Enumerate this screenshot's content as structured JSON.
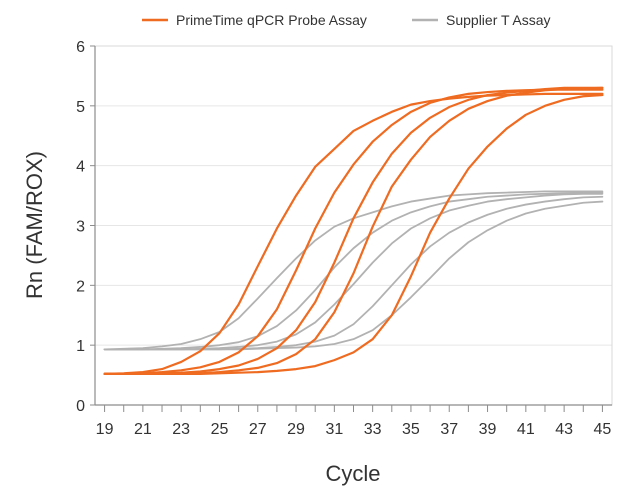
{
  "chart_data": {
    "type": "line",
    "title": "",
    "xlabel": "Cycle",
    "ylabel": "Rn (FAM/ROX)",
    "xlim": [
      18.5,
      45.5
    ],
    "ylim": [
      0,
      6
    ],
    "x_ticks": [
      19,
      20,
      21,
      22,
      23,
      24,
      25,
      26,
      27,
      28,
      29,
      30,
      31,
      32,
      33,
      34,
      35,
      36,
      37,
      38,
      39,
      40,
      41,
      42,
      43,
      44,
      45
    ],
    "x_tick_labels": [
      "19",
      "21",
      "23",
      "25",
      "27",
      "29",
      "31",
      "33",
      "35",
      "37",
      "39",
      "41",
      "43",
      "45"
    ],
    "y_ticks": [
      0,
      1,
      2,
      3,
      4,
      5,
      6
    ],
    "grid": true,
    "legend_position": "top",
    "legend": [
      {
        "label": "PrimeTime qPCR Probe Assay",
        "color": "#ee6b21"
      },
      {
        "label": "Supplier T Assay",
        "color": "#b2b2b2"
      }
    ],
    "x": [
      19,
      20,
      21,
      22,
      23,
      24,
      25,
      26,
      27,
      28,
      29,
      30,
      31,
      32,
      33,
      34,
      35,
      36,
      37,
      38,
      39,
      40,
      41,
      42,
      43,
      44,
      45
    ],
    "series": [
      {
        "group": "PrimeTime qPCR Probe Assay",
        "color": "#ee6b21",
        "values": [
          0.52,
          0.53,
          0.55,
          0.6,
          0.72,
          0.9,
          1.2,
          1.68,
          2.32,
          2.95,
          3.5,
          3.98,
          4.28,
          4.58,
          4.75,
          4.9,
          5.02,
          5.08,
          5.12,
          5.15,
          5.17,
          5.18,
          5.19,
          5.2,
          5.2,
          5.2,
          5.2
        ]
      },
      {
        "group": "PrimeTime qPCR Probe Assay",
        "color": "#ee6b21",
        "values": [
          0.52,
          0.52,
          0.53,
          0.55,
          0.58,
          0.63,
          0.72,
          0.88,
          1.15,
          1.6,
          2.25,
          2.95,
          3.55,
          4.02,
          4.4,
          4.68,
          4.9,
          5.05,
          5.14,
          5.2,
          5.23,
          5.25,
          5.26,
          5.27,
          5.27,
          5.27,
          5.27
        ]
      },
      {
        "group": "PrimeTime qPCR Probe Assay",
        "color": "#ee6b21",
        "values": [
          0.52,
          0.52,
          0.52,
          0.53,
          0.54,
          0.56,
          0.6,
          0.66,
          0.77,
          0.95,
          1.25,
          1.72,
          2.38,
          3.12,
          3.72,
          4.2,
          4.55,
          4.8,
          4.98,
          5.1,
          5.18,
          5.22,
          5.25,
          5.28,
          5.3,
          5.3,
          5.3
        ]
      },
      {
        "group": "PrimeTime qPCR Probe Assay",
        "color": "#ee6b21",
        "values": [
          0.52,
          0.52,
          0.52,
          0.52,
          0.53,
          0.53,
          0.55,
          0.58,
          0.62,
          0.7,
          0.85,
          1.1,
          1.55,
          2.2,
          2.98,
          3.65,
          4.1,
          4.48,
          4.75,
          4.95,
          5.08,
          5.17,
          5.22,
          5.26,
          5.28,
          5.29,
          5.3
        ]
      },
      {
        "group": "PrimeTime qPCR Probe Assay",
        "color": "#ee6b21",
        "values": [
          0.52,
          0.52,
          0.52,
          0.52,
          0.52,
          0.52,
          0.53,
          0.54,
          0.55,
          0.57,
          0.6,
          0.65,
          0.75,
          0.88,
          1.1,
          1.5,
          2.15,
          2.88,
          3.45,
          3.95,
          4.32,
          4.62,
          4.85,
          5.0,
          5.1,
          5.16,
          5.18
        ]
      },
      {
        "group": "Supplier T Assay",
        "color": "#b2b2b2",
        "values": [
          0.93,
          0.94,
          0.95,
          0.98,
          1.02,
          1.1,
          1.22,
          1.45,
          1.78,
          2.12,
          2.45,
          2.75,
          2.98,
          3.12,
          3.22,
          3.32,
          3.4,
          3.45,
          3.5,
          3.52,
          3.54,
          3.55,
          3.56,
          3.57,
          3.57,
          3.57,
          3.57
        ]
      },
      {
        "group": "Supplier T Assay",
        "color": "#b2b2b2",
        "values": [
          0.93,
          0.93,
          0.93,
          0.94,
          0.95,
          0.97,
          1.0,
          1.05,
          1.15,
          1.32,
          1.58,
          1.92,
          2.3,
          2.62,
          2.88,
          3.08,
          3.22,
          3.32,
          3.4,
          3.44,
          3.48,
          3.5,
          3.52,
          3.53,
          3.54,
          3.55,
          3.55
        ]
      },
      {
        "group": "Supplier T Assay",
        "color": "#b2b2b2",
        "values": [
          0.93,
          0.93,
          0.93,
          0.93,
          0.93,
          0.94,
          0.95,
          0.97,
          1.0,
          1.06,
          1.18,
          1.38,
          1.68,
          2.02,
          2.38,
          2.7,
          2.95,
          3.12,
          3.25,
          3.33,
          3.4,
          3.44,
          3.47,
          3.5,
          3.52,
          3.53,
          3.53
        ]
      },
      {
        "group": "Supplier T Assay",
        "color": "#b2b2b2",
        "values": [
          0.93,
          0.93,
          0.93,
          0.93,
          0.93,
          0.93,
          0.93,
          0.94,
          0.95,
          0.97,
          1.0,
          1.06,
          1.16,
          1.35,
          1.65,
          2.0,
          2.35,
          2.65,
          2.88,
          3.05,
          3.18,
          3.28,
          3.35,
          3.4,
          3.44,
          3.47,
          3.48
        ]
      },
      {
        "group": "Supplier T Assay",
        "color": "#b2b2b2",
        "values": [
          0.93,
          0.93,
          0.93,
          0.93,
          0.93,
          0.93,
          0.93,
          0.93,
          0.94,
          0.95,
          0.96,
          0.98,
          1.02,
          1.1,
          1.25,
          1.5,
          1.8,
          2.12,
          2.45,
          2.72,
          2.92,
          3.08,
          3.2,
          3.28,
          3.33,
          3.38,
          3.4
        ]
      }
    ]
  }
}
